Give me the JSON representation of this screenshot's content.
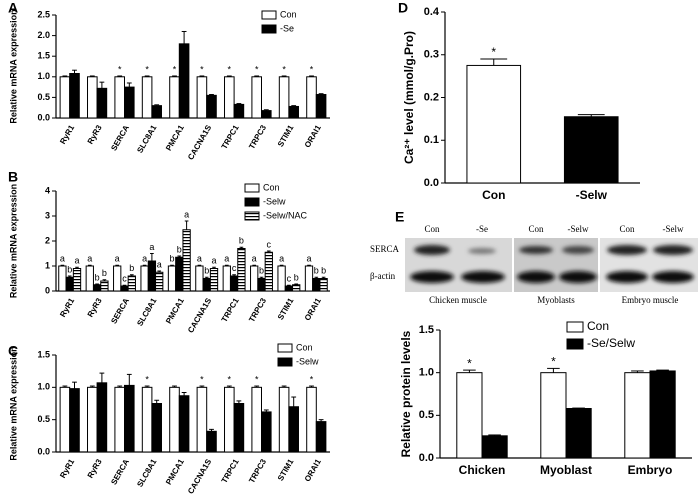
{
  "chart_data": [
    {
      "panel": "A",
      "type": "bar",
      "ylabel": "Relative mRNA expression",
      "categories": [
        "RyR1",
        "RyR3",
        "SERCA",
        "SLC8A1",
        "PMCA1",
        "CACNA1S",
        "TRPC1",
        "TRPC3",
        "STIM1",
        "ORAI1"
      ],
      "series": [
        {
          "name": "Con",
          "color": "#ffffff",
          "values": [
            1,
            1,
            1,
            1,
            1,
            1,
            1,
            1,
            1,
            1
          ],
          "errors": [
            0.02,
            0.02,
            0.02,
            0.02,
            0.02,
            0.02,
            0.02,
            0.02,
            0.02,
            0.02
          ],
          "annotations": [
            null,
            null,
            "*",
            "*",
            "*",
            "*",
            "*",
            "*",
            "*",
            "*"
          ]
        },
        {
          "name": "-Se",
          "color": "#000000",
          "values": [
            1.08,
            0.72,
            0.75,
            0.3,
            1.8,
            0.55,
            0.33,
            0.18,
            0.28,
            0.57
          ],
          "errors": [
            0.08,
            0.15,
            0.1,
            0.02,
            0.3,
            0.02,
            0.02,
            0.02,
            0.02,
            0.02
          ]
        }
      ],
      "ylim": [
        0,
        2.5
      ],
      "yticks": [
        {
          "value": 0,
          "label": "0.0"
        },
        0.5,
        {
          "value": 1,
          "label": "1.0"
        },
        1.5,
        {
          "value": 2,
          "label": "2.0"
        },
        2.5
      ],
      "legend": "upper right"
    },
    {
      "panel": "B",
      "type": "bar",
      "ylabel": "Relative mRNA expression",
      "categories": [
        "RyR1",
        "RyR3",
        "SERCA",
        "SLC8A1",
        "PMCA1",
        "CACNA1S",
        "TRPC1",
        "TRPC3",
        "STIM1",
        "ORAI1"
      ],
      "series": [
        {
          "name": "Con",
          "color": "#ffffff",
          "values": [
            1,
            1,
            1,
            1,
            1,
            1,
            1,
            1,
            1,
            1
          ],
          "errors": [
            0.03,
            0.03,
            0.03,
            0.03,
            0.03,
            0.03,
            0.03,
            0.03,
            0.03,
            0.03
          ],
          "annotations": [
            "a",
            "a",
            "a",
            "a",
            "b",
            "a",
            "a",
            "a",
            "a",
            "a"
          ]
        },
        {
          "name": "-Selw",
          "color": "#000000",
          "values": [
            0.55,
            0.25,
            0.2,
            1.2,
            1.35,
            0.5,
            0.6,
            0.5,
            0.2,
            0.5
          ],
          "errors": [
            0.05,
            0.03,
            0.03,
            0.3,
            0.05,
            0.05,
            0.05,
            0.05,
            0.03,
            0.05
          ],
          "annotations": [
            "b",
            "b",
            "c",
            "a",
            "b",
            "b",
            "c",
            "b",
            "c",
            "b"
          ]
        },
        {
          "name": "-Selw/NAC",
          "color": "#ffffff",
          "pattern": "horizontal-stripes",
          "values": [
            0.9,
            0.4,
            0.6,
            0.75,
            2.45,
            0.9,
            1.7,
            1.55,
            0.25,
            0.5
          ],
          "errors": [
            0.05,
            0.05,
            0.05,
            0.05,
            0.35,
            0.05,
            0.05,
            0.05,
            0.03,
            0.05
          ],
          "annotations": [
            "a",
            "b",
            "b",
            "a",
            "a",
            "a",
            "b",
            "c",
            "b",
            "b"
          ]
        }
      ],
      "ylim": [
        0,
        4
      ],
      "yticks": [
        0,
        1,
        2,
        3,
        4
      ],
      "legend": "upper right"
    },
    {
      "panel": "C",
      "type": "bar",
      "ylabel": "Relative mRNA expression",
      "categories": [
        "RyR1",
        "RyR3",
        "SERCA",
        "SLC8A1",
        "PMCA1",
        "CACNA1S",
        "TRPC1",
        "TRPC3",
        "STIM1",
        "ORAI1"
      ],
      "series": [
        {
          "name": "Con",
          "color": "#ffffff",
          "values": [
            1,
            1,
            1,
            1,
            1,
            1,
            1,
            1,
            1,
            1
          ],
          "errors": [
            0.02,
            0.02,
            0.02,
            0.02,
            0.02,
            0.02,
            0.02,
            0.02,
            0.02,
            0.02
          ],
          "annotations": [
            null,
            null,
            null,
            "*",
            null,
            "*",
            "*",
            "*",
            null,
            "*"
          ]
        },
        {
          "name": "-Selw",
          "color": "#000000",
          "values": [
            0.98,
            1.07,
            1.03,
            0.75,
            0.87,
            0.32,
            0.75,
            0.62,
            0.7,
            0.47
          ],
          "errors": [
            0.1,
            0.15,
            0.17,
            0.05,
            0.05,
            0.03,
            0.04,
            0.03,
            0.15,
            0.03
          ]
        }
      ],
      "ylim": [
        0,
        1.5
      ],
      "yticks": [
        {
          "value": 0,
          "label": "0.0"
        },
        0.5,
        {
          "value": 1,
          "label": "1.0"
        },
        1.5
      ],
      "legend": "upper right"
    },
    {
      "panel": "D",
      "type": "bar",
      "ylabel": "Ca²⁺ level (mmol/g.Pro)",
      "categories": [
        "Con",
        "-Selw"
      ],
      "series": [
        {
          "colors": [
            "#ffffff",
            "#000000"
          ],
          "values": [
            0.275,
            0.155
          ],
          "errors": [
            0.015,
            0.005
          ],
          "annotations": [
            "*",
            null
          ]
        }
      ],
      "ylim": [
        0,
        0.4
      ],
      "yticks": [
        {
          "value": 0,
          "label": "0.0"
        },
        0.1,
        0.2,
        0.3,
        0.4
      ]
    },
    {
      "panel": "E",
      "type": "bar",
      "ylabel": "Relative protein levels",
      "categories": [
        "Chicken",
        "Myoblast",
        "Embryo"
      ],
      "series": [
        {
          "name": "Con",
          "color": "#ffffff",
          "values": [
            1,
            1,
            1
          ],
          "errors": [
            0.03,
            0.05,
            0.02
          ],
          "annotations": [
            "*",
            "*",
            null
          ]
        },
        {
          "name": "-Se/Selw",
          "color": "#000000",
          "values": [
            0.26,
            0.58,
            1.02
          ],
          "errors": [
            0.01,
            0.005,
            0.01
          ]
        }
      ],
      "ylim": [
        0,
        1.5
      ],
      "yticks": [
        {
          "value": 0,
          "label": "0.0"
        },
        0.5,
        {
          "value": 1,
          "label": "1.0"
        },
        1.5
      ],
      "legend": "upper right"
    }
  ],
  "blot": {
    "lanes": [
      "Con",
      "-Se",
      "Con",
      "-Selw",
      "Con",
      "-Selw"
    ],
    "rows": [
      "SERCA",
      "β-actin"
    ],
    "tissues": [
      "Chicken muscle",
      "Myoblasts",
      "Embryo muscle"
    ]
  }
}
